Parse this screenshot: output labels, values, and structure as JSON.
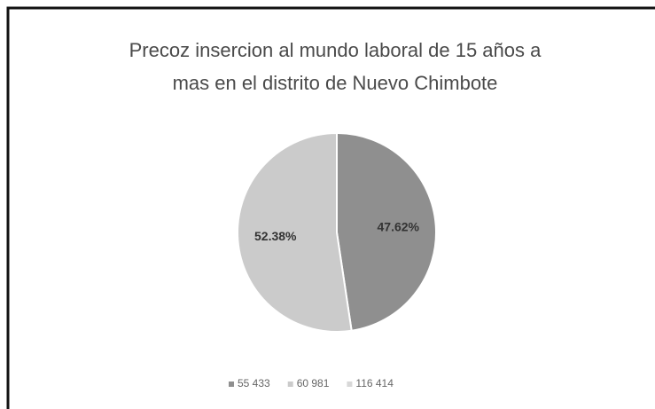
{
  "chart_data": {
    "type": "pie",
    "title": [
      "Precoz insercion al mundo laboral de 15 años a",
      "mas en el distrito de Nuevo Chimbote"
    ],
    "categories": [
      "55 433",
      "60 981",
      "116 414"
    ],
    "values": [
      47.62,
      52.38,
      0
    ],
    "value_labels": [
      "47.62%",
      "52.38%",
      null
    ],
    "colors": [
      "#8f8f8f",
      "#cbcbcb",
      "#e4e4e4"
    ],
    "legend": "bottom"
  }
}
